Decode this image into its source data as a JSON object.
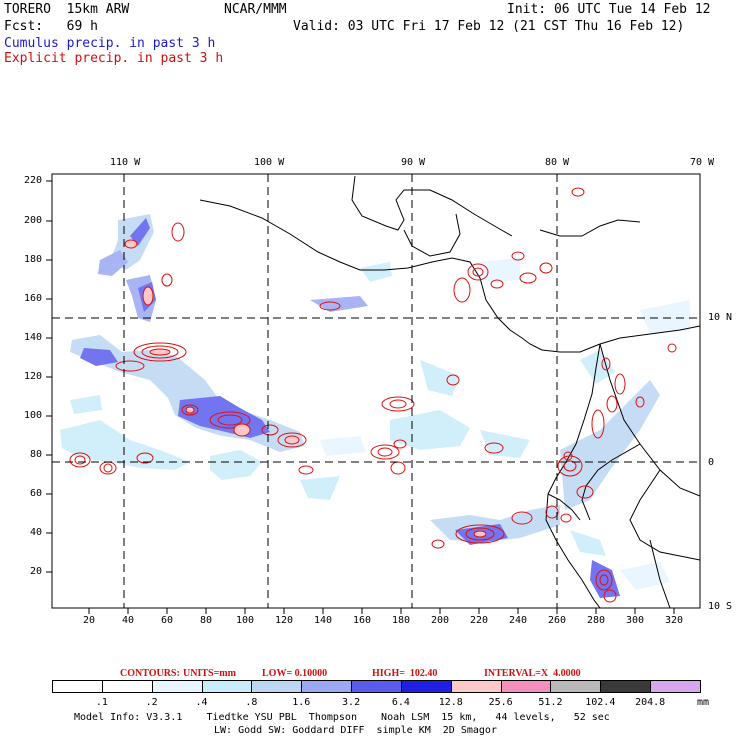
{
  "header": {
    "model": "TORERO  15km ARW",
    "org": "NCAR/MMM",
    "init": "Init: 06 UTC Tue 14 Feb 12",
    "fcst": "Fcst:   69 h",
    "valid": "Valid: 03 UTC Fri 17 Feb 12 (21 CST Thu 16 Feb 12)",
    "cumulus_legend": "Cumulus precip. in past 3 h",
    "explicit_legend": "Explicit precip. in past 3 h"
  },
  "map": {
    "top_lon_labels": [
      "110 W",
      "100 W",
      "90 W",
      "80 W",
      "70 W"
    ],
    "right_lat_labels": [
      "10 N",
      "0",
      "10 S"
    ],
    "y_ticks": [
      "220",
      "200",
      "180",
      "160",
      "140",
      "120",
      "100",
      "80",
      "60",
      "40",
      "20"
    ],
    "x_ticks": [
      "20",
      "40",
      "60",
      "80",
      "100",
      "120",
      "140",
      "160",
      "180",
      "200",
      "220",
      "240",
      "260",
      "280",
      "300",
      "320"
    ],
    "colors": {
      "cumulus": "#3a3af0",
      "explicit": "#e01010",
      "coast": "#000000"
    }
  },
  "contours": {
    "label": "CONTOURS:",
    "units": "UNITS=mm",
    "low": "LOW= 0.10000",
    "high": "HIGH=  102.40",
    "interval": "INTERVAL=X  4.0000"
  },
  "colorbar": {
    "labels": [
      ".1",
      ".2",
      ".4",
      ".8",
      "1.6",
      "3.2",
      "6.4",
      "12.8",
      "25.6",
      "51.2",
      "102.4",
      "204.8"
    ],
    "colors": [
      "#ffffff",
      "#ffffff",
      "#e6f5ff",
      "#c9ecfb",
      "#bcd6f4",
      "#9aa7f2",
      "#5a5cee",
      "#1f1fe6",
      "#fcc8c8",
      "#f58fbe",
      "#b9b9b9",
      "#3a3a3a",
      "#d7a6ee"
    ],
    "units": "mm"
  },
  "footer": {
    "line1": "Model Info: V3.3.1    Tiedtke YSU PBL  Thompson    Noah LSM  15 km,   44 levels,   52 sec",
    "line2": "LW: Godd SW: Goddard DIFF  simple KM  2D Smagor"
  }
}
